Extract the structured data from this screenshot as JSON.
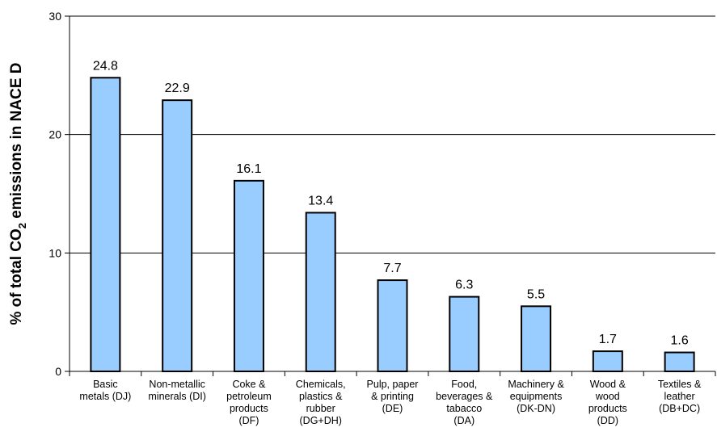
{
  "chart_data": {
    "type": "bar",
    "categories": [
      [
        "Basic",
        "metals (DJ)"
      ],
      [
        "Non-metallic",
        "minerals (DI)"
      ],
      [
        "Coke &",
        "petroleum",
        "products",
        "(DF)"
      ],
      [
        "Chemicals,",
        "plastics &",
        "rubber",
        "(DG+DH)"
      ],
      [
        "Pulp, paper",
        "& printing",
        "(DE)"
      ],
      [
        "Food,",
        "beverages &",
        "tabacco",
        "(DA)"
      ],
      [
        "Machinery &",
        "equipments",
        "(DK-DN)"
      ],
      [
        "Wood &",
        "wood",
        "products",
        "(DD)"
      ],
      [
        "Textiles &",
        "leather",
        "(DB+DC)"
      ]
    ],
    "values": [
      24.8,
      22.9,
      16.1,
      13.4,
      7.7,
      6.3,
      5.5,
      1.7,
      1.6
    ],
    "data_labels": [
      "24.8",
      "22.9",
      "16.1",
      "13.4",
      "7.7",
      "6.3",
      "5.5",
      "1.7",
      "1.6"
    ],
    "ylabel_parts": [
      "% of total CO",
      "2",
      " emissions in NACE D"
    ],
    "xlabel": "",
    "ylim": [
      0,
      30
    ],
    "yticks": [
      0,
      10,
      20,
      30
    ],
    "grid": true,
    "bar_color": "#99ccff",
    "bar_edge_color": "#000000"
  }
}
